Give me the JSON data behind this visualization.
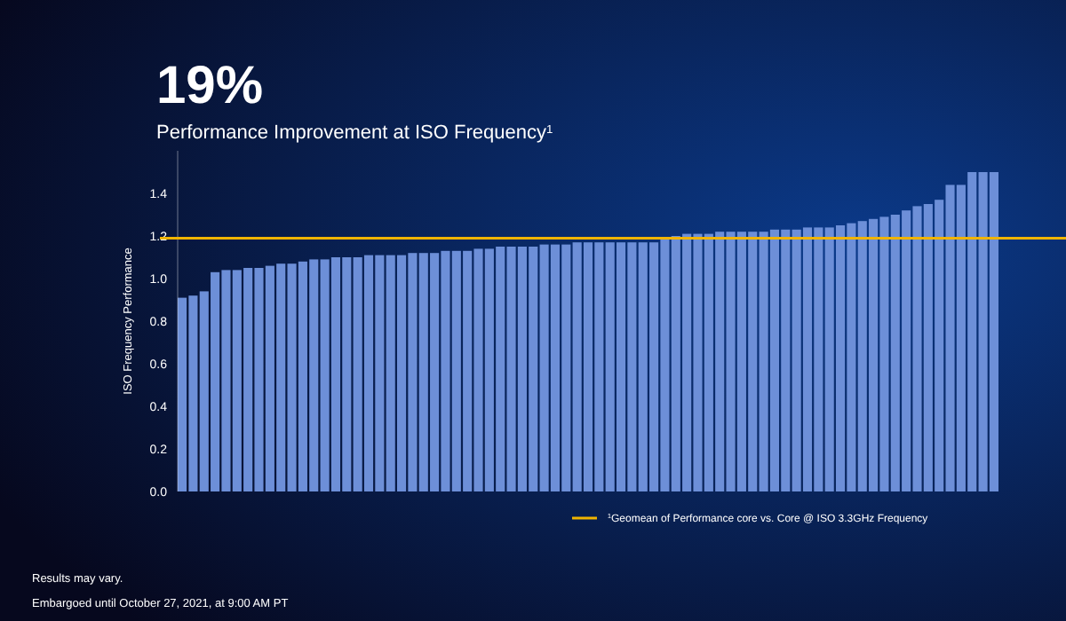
{
  "chart_data": {
    "type": "bar",
    "title": "19%",
    "subtitle": "Performance Improvement at ISO Frequency$^{1}$",
    "ylabel": "ISO Frequency Performance",
    "categories": [
      null,
      null,
      null,
      null,
      null,
      null,
      null,
      null,
      null,
      null,
      null,
      null,
      null,
      null,
      null,
      null,
      null,
      null,
      null,
      null,
      null,
      null,
      null,
      null,
      null,
      null,
      null,
      null,
      null,
      null,
      null,
      null,
      null,
      null,
      null,
      null,
      null,
      null,
      null,
      null,
      null,
      null,
      null,
      null,
      null,
      null,
      null,
      null,
      null,
      null,
      null,
      null,
      null,
      null,
      null,
      null,
      null,
      null,
      null,
      null,
      null,
      null,
      null,
      null,
      null,
      null,
      null,
      null,
      null,
      null,
      null,
      null,
      null,
      null,
      null
    ],
    "series": [
      {
        "color": "#6d8fd8",
        "values": [
          0.91,
          0.92,
          0.94,
          1.03,
          1.04,
          1.04,
          1.05,
          1.05,
          1.06,
          1.07,
          1.07,
          1.08,
          1.09,
          1.09,
          1.1,
          1.1,
          1.1,
          1.11,
          1.11,
          1.11,
          1.11,
          1.12,
          1.12,
          1.12,
          1.13,
          1.13,
          1.13,
          1.14,
          1.14,
          1.15,
          1.15,
          1.15,
          1.15,
          1.16,
          1.16,
          1.16,
          1.17,
          1.17,
          1.17,
          1.17,
          1.17,
          1.17,
          1.17,
          1.17,
          1.19,
          1.2,
          1.21,
          1.21,
          1.21,
          1.22,
          1.22,
          1.22,
          1.22,
          1.22,
          1.23,
          1.23,
          1.23,
          1.24,
          1.24,
          1.24,
          1.25,
          1.26,
          1.27,
          1.28,
          1.29,
          1.3,
          1.32,
          1.34,
          1.35,
          1.37,
          1.44,
          1.44,
          1.5,
          1.5,
          1.5
        ]
      }
    ],
    "ylim": [
      0,
      1.6
    ],
    "yticks": [
      {
        "value": 0,
        "label": "0.0"
      },
      {
        "value": 0.2,
        "label": "0.2"
      },
      {
        "value": 0.4,
        "label": "0.4"
      },
      {
        "value": 0.6,
        "label": "0.6"
      },
      {
        "value": 0.8,
        "label": "0.8"
      },
      {
        "value": 1,
        "label": "1.0"
      },
      {
        "value": 1.2,
        "label": "1.2"
      },
      {
        "value": 1.4,
        "label": "1.4"
      }
    ],
    "ref_lines": [
      {
        "axis": "y",
        "value": 1.19,
        "label": "$^{1}$Geomean of Performance core vs. Core @ ISO 3.3GHz Frequency",
        "color": "#f0b400"
      }
    ],
    "grid": false,
    "legend": "bottom",
    "annotations": [
      "Results may vary.",
      "Embargoed until October 27, 2021, at 9:00 AM PT"
    ]
  }
}
